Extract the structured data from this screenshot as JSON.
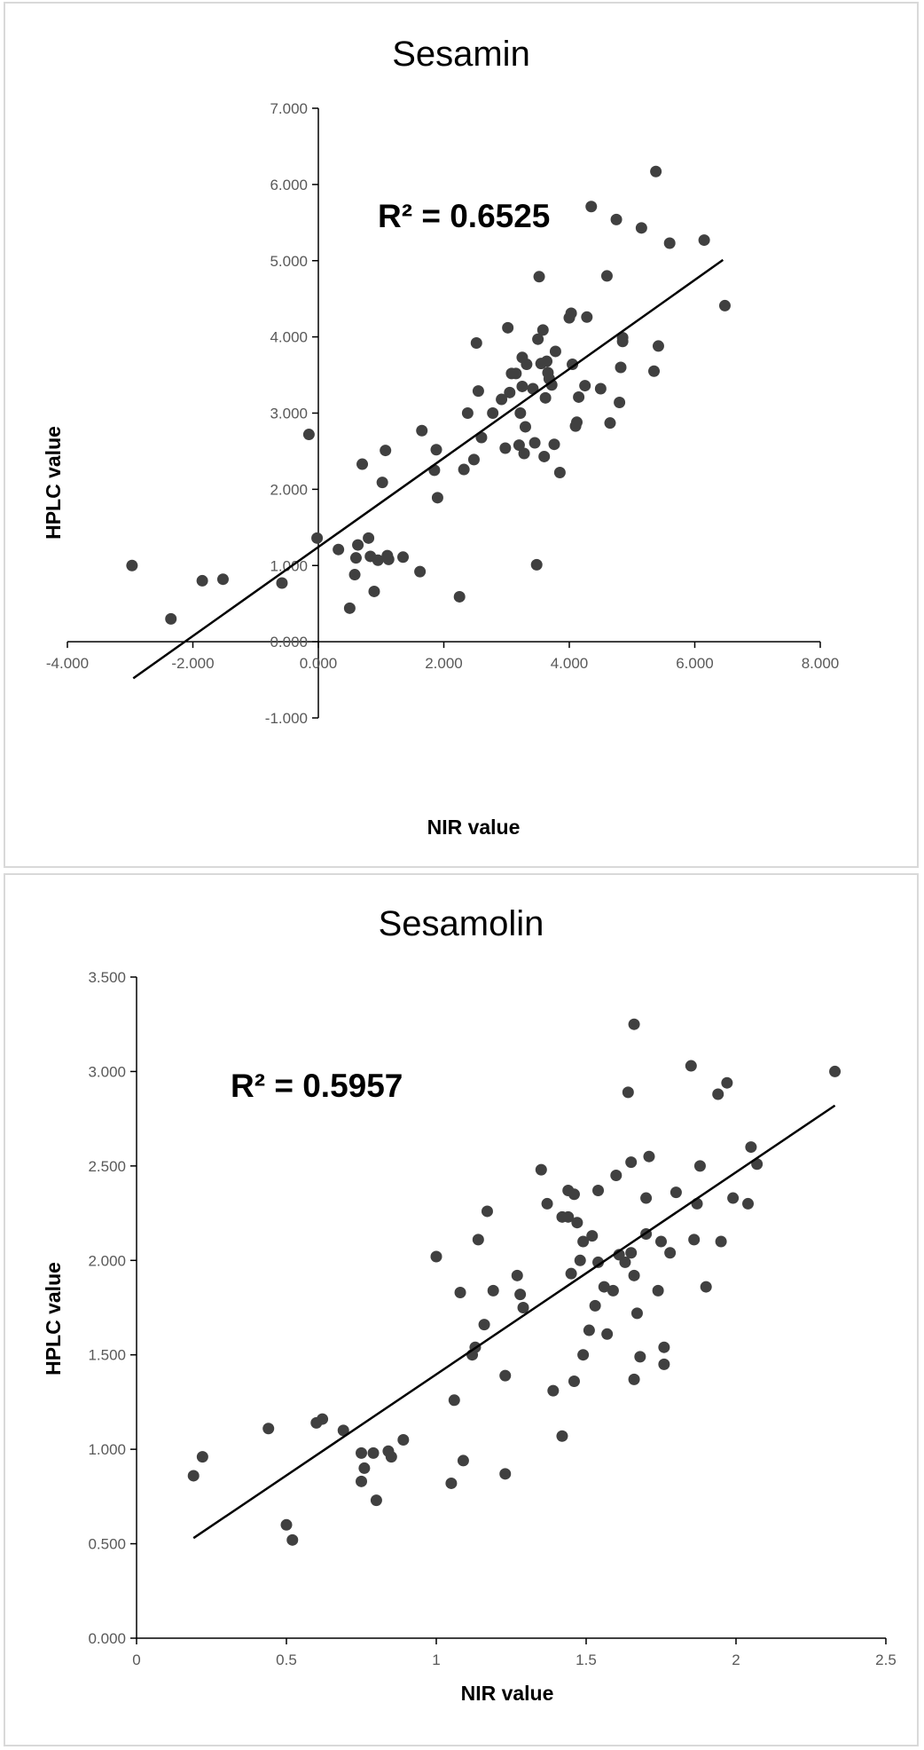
{
  "chart_data": [
    {
      "type": "scatter",
      "title": "Sesamin",
      "xlabel": "NIR value",
      "ylabel": "HPLC value",
      "annotation": "R² = 0.6525",
      "xlim": [
        -4,
        8
      ],
      "ylim": [
        -1,
        7
      ],
      "x_ticks": [
        "-4.000",
        "-2.000",
        "0.000",
        "2.000",
        "4.000",
        "6.000",
        "8.000"
      ],
      "y_ticks": [
        "-1.000",
        "0.000",
        "1.000",
        "2.000",
        "3.000",
        "4.000",
        "5.000",
        "6.000",
        "7.000"
      ],
      "trendline": [
        [
          -2.95,
          -0.48
        ],
        [
          6.45,
          5.01
        ]
      ],
      "marker_color": "#404040",
      "points": [
        [
          -2.97,
          1.0
        ],
        [
          -2.35,
          0.3
        ],
        [
          -1.85,
          0.8
        ],
        [
          -1.52,
          0.82
        ],
        [
          -0.58,
          0.77
        ],
        [
          -0.15,
          2.72
        ],
        [
          -0.02,
          1.36
        ],
        [
          0.32,
          1.21
        ],
        [
          0.5,
          0.44
        ],
        [
          0.58,
          0.88
        ],
        [
          0.6,
          1.1
        ],
        [
          0.63,
          1.27
        ],
        [
          0.7,
          2.33
        ],
        [
          0.8,
          1.36
        ],
        [
          0.83,
          1.12
        ],
        [
          0.89,
          0.66
        ],
        [
          0.95,
          1.07
        ],
        [
          1.02,
          2.09
        ],
        [
          1.07,
          2.51
        ],
        [
          1.1,
          1.13
        ],
        [
          1.12,
          1.08
        ],
        [
          1.35,
          1.11
        ],
        [
          1.62,
          0.92
        ],
        [
          1.65,
          2.77
        ],
        [
          1.85,
          2.25
        ],
        [
          1.88,
          2.52
        ],
        [
          1.9,
          1.89
        ],
        [
          2.25,
          0.59
        ],
        [
          2.32,
          2.26
        ],
        [
          2.38,
          3.0
        ],
        [
          2.48,
          2.39
        ],
        [
          2.52,
          3.92
        ],
        [
          2.55,
          3.29
        ],
        [
          2.6,
          2.68
        ],
        [
          2.78,
          3.0
        ],
        [
          2.92,
          3.18
        ],
        [
          2.98,
          2.54
        ],
        [
          3.02,
          4.12
        ],
        [
          3.05,
          3.27
        ],
        [
          3.08,
          3.52
        ],
        [
          3.15,
          3.52
        ],
        [
          3.2,
          2.58
        ],
        [
          3.22,
          3.0
        ],
        [
          3.25,
          3.73
        ],
        [
          3.25,
          3.35
        ],
        [
          3.28,
          2.47
        ],
        [
          3.3,
          2.82
        ],
        [
          3.32,
          3.64
        ],
        [
          3.42,
          3.32
        ],
        [
          3.45,
          2.61
        ],
        [
          3.48,
          1.01
        ],
        [
          3.5,
          3.97
        ],
        [
          3.52,
          4.79
        ],
        [
          3.55,
          3.65
        ],
        [
          3.58,
          4.09
        ],
        [
          3.6,
          2.43
        ],
        [
          3.62,
          3.2
        ],
        [
          3.64,
          3.68
        ],
        [
          3.66,
          3.53
        ],
        [
          3.68,
          3.45
        ],
        [
          3.72,
          3.37
        ],
        [
          3.76,
          2.59
        ],
        [
          3.78,
          3.81
        ],
        [
          3.85,
          2.22
        ],
        [
          4.0,
          4.25
        ],
        [
          4.03,
          4.31
        ],
        [
          4.05,
          3.64
        ],
        [
          4.1,
          2.83
        ],
        [
          4.12,
          2.88
        ],
        [
          4.15,
          3.21
        ],
        [
          4.25,
          3.36
        ],
        [
          4.28,
          4.26
        ],
        [
          4.35,
          5.71
        ],
        [
          4.5,
          3.32
        ],
        [
          4.6,
          4.8
        ],
        [
          4.65,
          2.87
        ],
        [
          4.75,
          5.54
        ],
        [
          4.8,
          3.14
        ],
        [
          4.82,
          3.6
        ],
        [
          4.85,
          3.99
        ],
        [
          4.85,
          3.94
        ],
        [
          5.15,
          5.43
        ],
        [
          5.35,
          3.55
        ],
        [
          5.38,
          6.17
        ],
        [
          5.42,
          3.88
        ],
        [
          5.6,
          5.23
        ],
        [
          6.15,
          5.27
        ],
        [
          6.48,
          4.41
        ]
      ]
    },
    {
      "type": "scatter",
      "title": "Sesamolin",
      "xlabel": "NIR value",
      "ylabel": "HPLC value",
      "annotation": "R² = 0.5957",
      "xlim": [
        0,
        2.5
      ],
      "ylim": [
        0,
        3.5
      ],
      "x_ticks": [
        "0",
        "0.5",
        "1",
        "1.5",
        "2",
        "2.5"
      ],
      "y_ticks": [
        "0.000",
        "0.500",
        "1.000",
        "1.500",
        "2.000",
        "2.500",
        "3.000",
        "3.500"
      ],
      "trendline": [
        [
          0.19,
          0.53
        ],
        [
          2.33,
          2.82
        ]
      ],
      "marker_color": "#404040",
      "points": [
        [
          0.19,
          0.86
        ],
        [
          0.22,
          0.96
        ],
        [
          0.44,
          1.11
        ],
        [
          0.5,
          0.6
        ],
        [
          0.52,
          0.52
        ],
        [
          0.6,
          1.14
        ],
        [
          0.62,
          1.16
        ],
        [
          0.69,
          1.1
        ],
        [
          0.75,
          0.98
        ],
        [
          0.76,
          0.9
        ],
        [
          0.75,
          0.83
        ],
        [
          0.79,
          0.98
        ],
        [
          0.8,
          0.73
        ],
        [
          0.84,
          0.99
        ],
        [
          0.85,
          0.96
        ],
        [
          0.89,
          1.05
        ],
        [
          1.0,
          2.02
        ],
        [
          1.05,
          0.82
        ],
        [
          1.06,
          1.26
        ],
        [
          1.08,
          1.83
        ],
        [
          1.09,
          0.94
        ],
        [
          1.12,
          1.5
        ],
        [
          1.13,
          1.54
        ],
        [
          1.14,
          2.11
        ],
        [
          1.16,
          1.66
        ],
        [
          1.17,
          2.26
        ],
        [
          1.19,
          1.84
        ],
        [
          1.23,
          1.39
        ],
        [
          1.23,
          0.87
        ],
        [
          1.27,
          1.92
        ],
        [
          1.28,
          1.82
        ],
        [
          1.29,
          1.75
        ],
        [
          1.35,
          2.48
        ],
        [
          1.37,
          2.3
        ],
        [
          1.39,
          1.31
        ],
        [
          1.42,
          2.23
        ],
        [
          1.42,
          1.07
        ],
        [
          1.44,
          2.37
        ],
        [
          1.44,
          2.23
        ],
        [
          1.45,
          1.93
        ],
        [
          1.46,
          2.35
        ],
        [
          1.46,
          1.36
        ],
        [
          1.47,
          2.2
        ],
        [
          1.48,
          2.0
        ],
        [
          1.49,
          2.1
        ],
        [
          1.49,
          1.5
        ],
        [
          1.51,
          1.63
        ],
        [
          1.52,
          2.13
        ],
        [
          1.53,
          1.76
        ],
        [
          1.54,
          2.37
        ],
        [
          1.54,
          1.99
        ],
        [
          1.56,
          1.86
        ],
        [
          1.57,
          1.61
        ],
        [
          1.59,
          1.84
        ],
        [
          1.6,
          2.45
        ],
        [
          1.61,
          2.03
        ],
        [
          1.63,
          1.99
        ],
        [
          1.64,
          2.89
        ],
        [
          1.65,
          2.52
        ],
        [
          1.65,
          2.04
        ],
        [
          1.66,
          3.25
        ],
        [
          1.66,
          1.92
        ],
        [
          1.66,
          1.37
        ],
        [
          1.67,
          1.72
        ],
        [
          1.68,
          1.49
        ],
        [
          1.7,
          2.33
        ],
        [
          1.7,
          2.14
        ],
        [
          1.71,
          2.55
        ],
        [
          1.74,
          1.84
        ],
        [
          1.75,
          2.1
        ],
        [
          1.76,
          1.54
        ],
        [
          1.76,
          1.45
        ],
        [
          1.78,
          2.04
        ],
        [
          1.8,
          2.36
        ],
        [
          1.85,
          3.03
        ],
        [
          1.86,
          2.11
        ],
        [
          1.87,
          2.3
        ],
        [
          1.88,
          2.5
        ],
        [
          1.9,
          1.86
        ],
        [
          1.94,
          2.88
        ],
        [
          1.95,
          2.1
        ],
        [
          1.97,
          2.94
        ],
        [
          1.99,
          2.33
        ],
        [
          2.04,
          2.3
        ],
        [
          2.05,
          2.6
        ],
        [
          2.07,
          2.51
        ],
        [
          2.33,
          3.0
        ]
      ]
    }
  ]
}
